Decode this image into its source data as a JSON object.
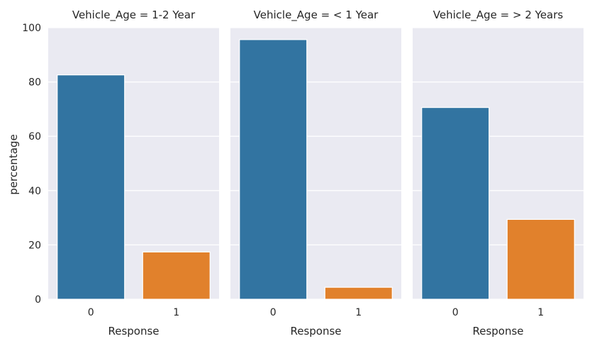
{
  "chart_data": {
    "type": "bar",
    "layout": "facet-columns",
    "y_label": "percentage",
    "ylim": [
      0,
      100
    ],
    "y_ticks": [
      0,
      20,
      40,
      60,
      80,
      100
    ],
    "grid": true,
    "colors": {
      "0": "#3274a1",
      "1": "#e1812c",
      "panel_bg": "#eaeaf2",
      "grid": "#ffffff"
    },
    "panels": [
      {
        "title": "Vehicle_Age = 1-2 Year",
        "xlabel": "Response",
        "categories": [
          "0",
          "1"
        ],
        "values": [
          82.6,
          17.4
        ]
      },
      {
        "title": "Vehicle_Age = < 1 Year",
        "xlabel": "Response",
        "categories": [
          "0",
          "1"
        ],
        "values": [
          95.6,
          4.4
        ]
      },
      {
        "title": "Vehicle_Age = > 2 Years",
        "xlabel": "Response",
        "categories": [
          "0",
          "1"
        ],
        "values": [
          70.6,
          29.4
        ]
      }
    ]
  }
}
